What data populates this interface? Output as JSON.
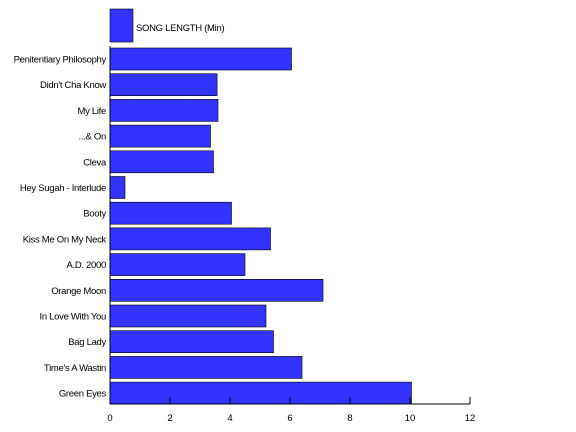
{
  "chart_data": {
    "type": "bar",
    "orientation": "horizontal",
    "categories": [
      "Penitentiary Philosophy",
      "Didn't Cha Know",
      "My Life",
      "...& On",
      "Cleva",
      "Hey Sugah - Interlude",
      "Booty",
      "Kiss Me On My Neck",
      "A.D. 2000",
      "Orange Moon",
      "In Love With You",
      "Bag Lady",
      "Time's A Wastin",
      "Green Eyes"
    ],
    "series": [
      {
        "name": "SONG LENGTH (Min)",
        "color": "#3333ff",
        "values": [
          6.05,
          3.57,
          3.6,
          3.35,
          3.45,
          0.5,
          4.05,
          5.35,
          4.5,
          7.1,
          5.2,
          5.45,
          6.4,
          10.05
        ]
      }
    ],
    "xlim": [
      0,
      12
    ],
    "xticks": [
      0,
      2,
      4,
      6,
      8,
      10,
      12
    ],
    "legend_position": "top-left",
    "grid": false
  }
}
